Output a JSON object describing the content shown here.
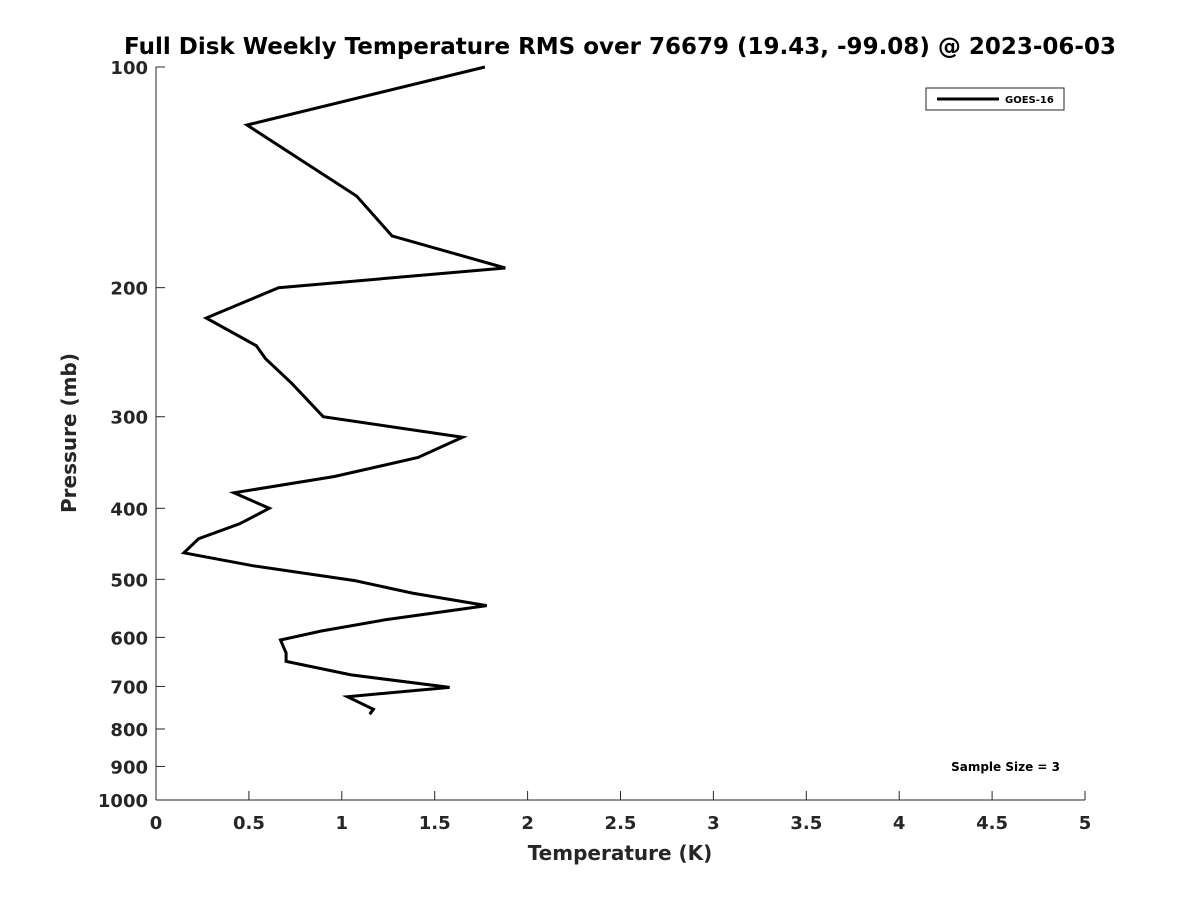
{
  "chart_data": {
    "type": "line",
    "title": "Full Disk Weekly Temperature RMS over 76679 (19.43, -99.08) @ 2023-06-03",
    "xlabel": "Temperature (K)",
    "ylabel": "Pressure (mb)",
    "xlim": [
      0,
      5
    ],
    "ylim": [
      100,
      1000
    ],
    "yscale": "log",
    "yreversed": true,
    "grid": false,
    "x_ticks": [
      "0",
      "0.5",
      "1",
      "1.5",
      "2",
      "2.5",
      "3",
      "3.5",
      "4",
      "4.5",
      "5"
    ],
    "x_tick_values": [
      0,
      0.5,
      1,
      1.5,
      2,
      2.5,
      3,
      3.5,
      4,
      4.5,
      5
    ],
    "y_ticks": [
      "100",
      "200",
      "300",
      "400",
      "500",
      "600",
      "700",
      "800",
      "900",
      "1000"
    ],
    "y_tick_values": [
      100,
      200,
      300,
      400,
      500,
      600,
      700,
      800,
      900,
      1000
    ],
    "legend_position": "top-right",
    "annotation": "Sample Size = 3",
    "series": [
      {
        "name": "GOES-16",
        "color": "#000000",
        "points": [
          [
            1.77,
            100
          ],
          [
            0.49,
            120
          ],
          [
            1.08,
            150
          ],
          [
            1.27,
            170
          ],
          [
            1.88,
            188
          ],
          [
            0.66,
            200
          ],
          [
            0.27,
            220
          ],
          [
            0.54,
            240
          ],
          [
            0.59,
            250
          ],
          [
            0.73,
            270
          ],
          [
            0.9,
            300
          ],
          [
            1.65,
            320
          ],
          [
            1.41,
            341
          ],
          [
            0.96,
            362
          ],
          [
            0.42,
            381
          ],
          [
            0.61,
            400
          ],
          [
            0.45,
            420
          ],
          [
            0.23,
            440
          ],
          [
            0.15,
            460
          ],
          [
            0.52,
            479
          ],
          [
            1.07,
            502
          ],
          [
            1.38,
            522
          ],
          [
            1.78,
            543
          ],
          [
            1.23,
            568
          ],
          [
            0.89,
            588
          ],
          [
            0.67,
            605
          ],
          [
            0.7,
            630
          ],
          [
            0.7,
            647
          ],
          [
            1.05,
            675
          ],
          [
            1.58,
            702
          ],
          [
            1.03,
            723
          ],
          [
            1.17,
            752
          ],
          [
            1.15,
            764
          ]
        ]
      }
    ]
  }
}
